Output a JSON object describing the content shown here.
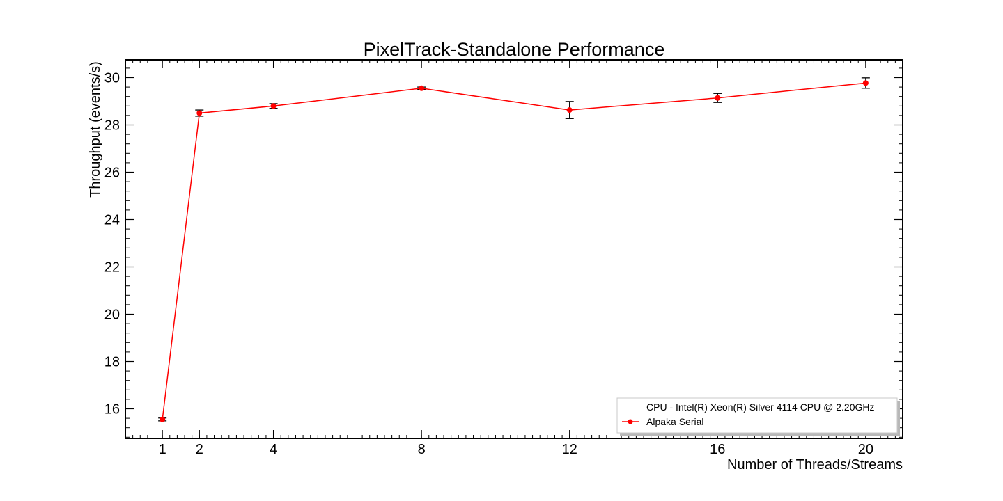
{
  "chart_data": {
    "type": "line",
    "title": "PixelTrack-Standalone Performance",
    "xlabel": "Number of Threads/Streams",
    "ylabel": "Throughput (events/s)",
    "xlim": [
      0.0,
      21.0
    ],
    "ylim": [
      14.75,
      30.75
    ],
    "xticks": [
      1,
      2,
      4,
      8,
      12,
      16,
      20
    ],
    "yticks": [
      16,
      18,
      20,
      22,
      24,
      26,
      28,
      30
    ],
    "grid": false,
    "legend_position": "bottom-right",
    "legend": {
      "header": "CPU - Intel(R) Xeon(R) Silver 4114 CPU @ 2.20GHz",
      "entries": [
        "Alpaka Serial"
      ]
    },
    "series": [
      {
        "name": "Alpaka Serial",
        "color": "#ff0000",
        "x": [
          1,
          2,
          4,
          8,
          12,
          16,
          20
        ],
        "y": [
          15.55,
          28.5,
          28.8,
          29.55,
          28.63,
          29.14,
          29.77
        ],
        "yerr": [
          0.06,
          0.13,
          0.1,
          0.05,
          0.36,
          0.19,
          0.22
        ]
      }
    ]
  }
}
